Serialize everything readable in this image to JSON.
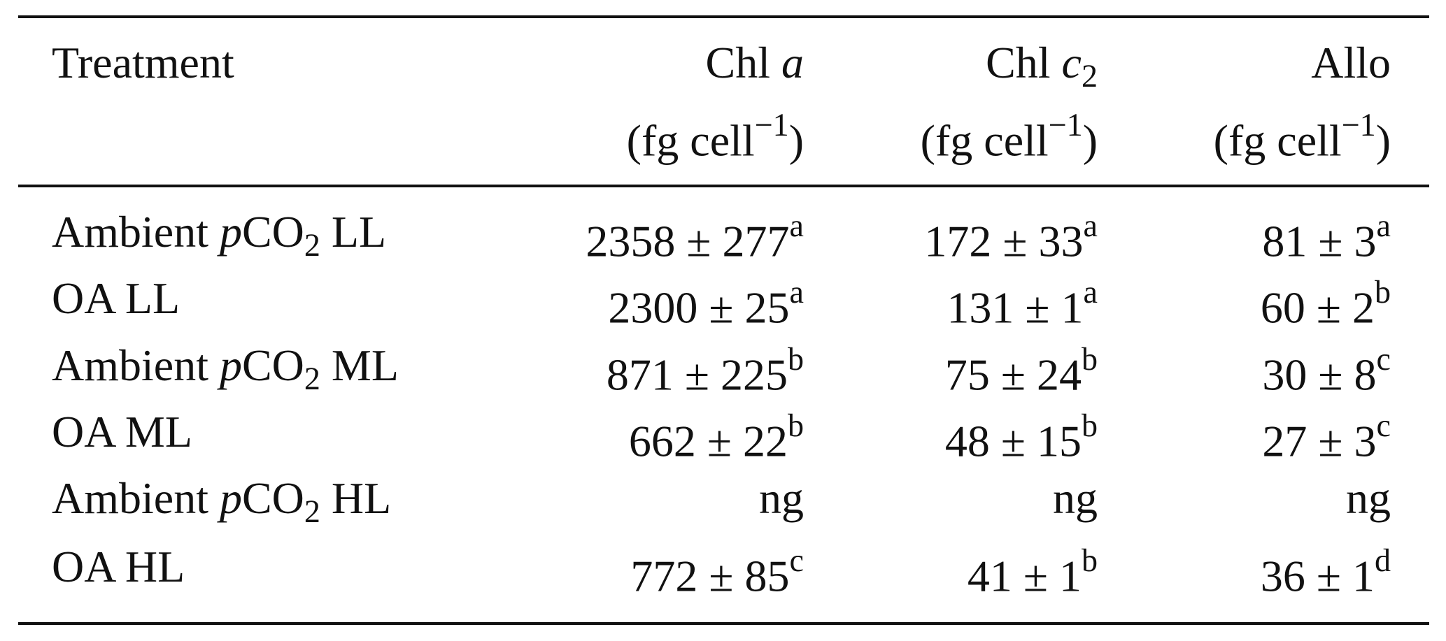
{
  "table": {
    "columns": [
      {
        "name": [
          {
            "text": "Treatment"
          }
        ]
      },
      {
        "name": [
          {
            "text": "Chl "
          },
          {
            "text": "a",
            "style": "italic"
          }
        ],
        "unit": [
          {
            "text": "(fg cell"
          },
          {
            "text": "−1",
            "style": "sup"
          },
          {
            "text": ")"
          }
        ]
      },
      {
        "name": [
          {
            "text": "Chl "
          },
          {
            "text": "c",
            "style": "italic"
          },
          {
            "text": "2",
            "style": "sub"
          }
        ],
        "unit": [
          {
            "text": "(fg cell"
          },
          {
            "text": "−1",
            "style": "sup"
          },
          {
            "text": ")"
          }
        ]
      },
      {
        "name": [
          {
            "text": "Allo"
          }
        ],
        "unit": [
          {
            "text": "(fg cell"
          },
          {
            "text": "−1",
            "style": "sup"
          },
          {
            "text": ")"
          }
        ]
      }
    ],
    "rows": [
      {
        "treatment": [
          {
            "text": "Ambient "
          },
          {
            "text": "p",
            "style": "italic"
          },
          {
            "text": "CO"
          },
          {
            "text": "2",
            "style": "sub"
          },
          {
            "text": " LL"
          }
        ],
        "values": [
          {
            "text": "2358 ± 277",
            "group": "a"
          },
          {
            "text": "172 ± 33",
            "group": "a"
          },
          {
            "text": "81 ± 3",
            "group": "a"
          }
        ]
      },
      {
        "treatment": [
          {
            "text": "OA LL"
          }
        ],
        "values": [
          {
            "text": "2300 ± 25",
            "group": "a"
          },
          {
            "text": "131 ± 1",
            "group": "a"
          },
          {
            "text": "60 ± 2",
            "group": "b"
          }
        ]
      },
      {
        "treatment": [
          {
            "text": "Ambient "
          },
          {
            "text": "p",
            "style": "italic"
          },
          {
            "text": "CO"
          },
          {
            "text": "2",
            "style": "sub"
          },
          {
            "text": " ML"
          }
        ],
        "values": [
          {
            "text": "871 ± 225",
            "group": "b"
          },
          {
            "text": "75 ± 24",
            "group": "b"
          },
          {
            "text": "30 ± 8",
            "group": "c"
          }
        ]
      },
      {
        "treatment": [
          {
            "text": "OA ML"
          }
        ],
        "values": [
          {
            "text": "662 ± 22",
            "group": "b"
          },
          {
            "text": "48 ± 15",
            "group": "b"
          },
          {
            "text": "27 ± 3",
            "group": "c"
          }
        ]
      },
      {
        "treatment": [
          {
            "text": "Ambient "
          },
          {
            "text": "p",
            "style": "italic"
          },
          {
            "text": "CO"
          },
          {
            "text": "2",
            "style": "sub"
          },
          {
            "text": " HL"
          }
        ],
        "values": [
          {
            "text": "ng"
          },
          {
            "text": "ng"
          },
          {
            "text": "ng"
          }
        ]
      },
      {
        "treatment": [
          {
            "text": "OA HL"
          }
        ],
        "values": [
          {
            "text": "772 ± 85",
            "group": "c"
          },
          {
            "text": "41 ± 1",
            "group": "b"
          },
          {
            "text": "36 ± 1",
            "group": "d"
          }
        ]
      }
    ]
  }
}
